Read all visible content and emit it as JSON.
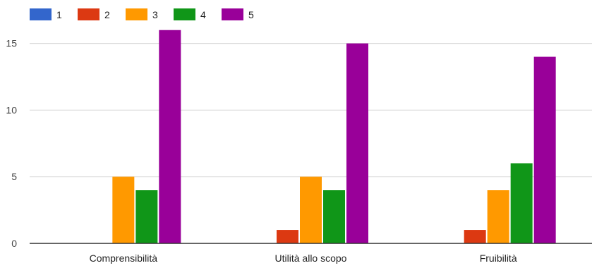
{
  "chart_data": {
    "type": "bar",
    "categories": [
      "Comprensibilità",
      "Utilità allo scopo",
      "Fruibilità"
    ],
    "series": [
      {
        "name": "1",
        "color": "#3366cc",
        "values": [
          0,
          0,
          0
        ]
      },
      {
        "name": "2",
        "color": "#dc3912",
        "values": [
          0,
          1,
          1
        ]
      },
      {
        "name": "3",
        "color": "#ff9900",
        "values": [
          5,
          5,
          4
        ]
      },
      {
        "name": "4",
        "color": "#109618",
        "values": [
          4,
          4,
          6
        ]
      },
      {
        "name": "5",
        "color": "#990099",
        "values": [
          16,
          15,
          14
        ]
      }
    ],
    "yticks": [
      "0",
      "5",
      "10",
      "15"
    ],
    "ylim": [
      0,
      17.2
    ],
    "grid": true,
    "legend": "top-left",
    "title": "",
    "xlabel": "",
    "ylabel": ""
  }
}
